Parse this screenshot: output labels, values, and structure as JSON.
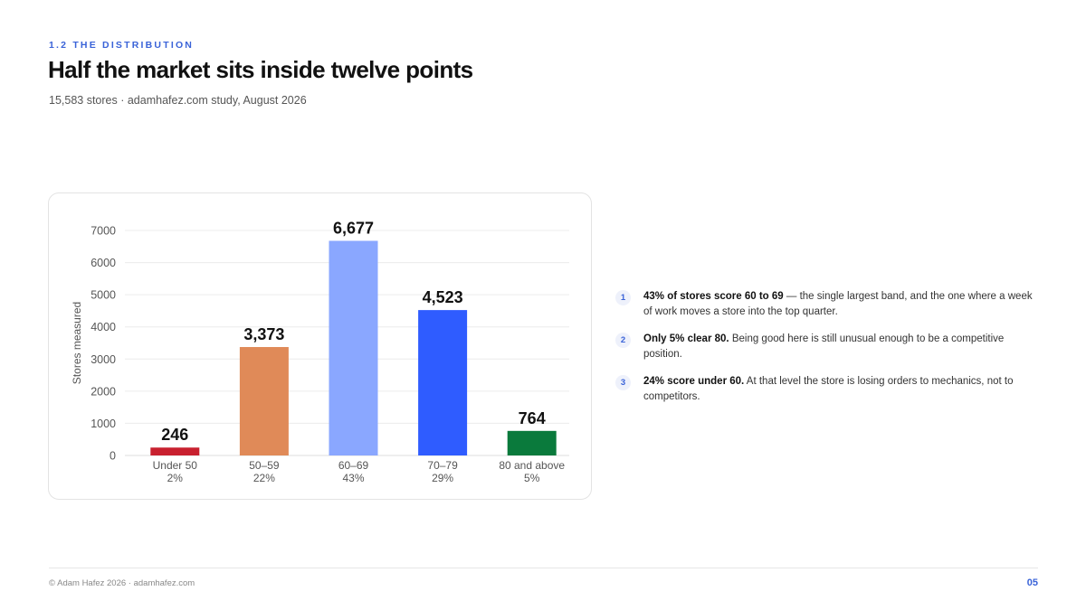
{
  "header": {
    "eyebrow": "1.2 THE DISTRIBUTION",
    "title": "Half the market sits inside twelve points",
    "subtitle": "15,583 stores · adamhafez.com study, August 2026"
  },
  "chart_data": {
    "type": "bar",
    "categories": [
      "Under 50",
      "50–59",
      "60–69",
      "70–79",
      "80 and above"
    ],
    "shares": [
      "2%",
      "22%",
      "43%",
      "29%",
      "5%"
    ],
    "values": [
      246,
      3373,
      6677,
      4523,
      764
    ],
    "value_labels": [
      "246",
      "3,373",
      "6,677",
      "4,523",
      "764"
    ],
    "colors": [
      "#c8202f",
      "#e08a58",
      "#8aa7ff",
      "#2f5cff",
      "#0a7a3c"
    ],
    "ylabel": "Stores measured",
    "xlabel": "",
    "ylim": [
      0,
      7000
    ],
    "yticks": [
      0,
      1000,
      2000,
      3000,
      4000,
      5000,
      6000,
      7000
    ],
    "grid": true
  },
  "insights": [
    {
      "index": "1",
      "bold": "43% of stores score 60 to 69",
      "text": " — the single largest band, and the one where a week of work moves a store into the top quarter."
    },
    {
      "index": "2",
      "bold": "Only 5% clear 80.",
      "text": " Being good here is still unusual enough to be a competitive position."
    },
    {
      "index": "3",
      "bold": "24% score under 60.",
      "text": " At that level the store is losing orders to mechanics, not to competitors."
    }
  ],
  "footer": {
    "copyright": "© Adam Hafez 2026 · adamhafez.com",
    "page": "05"
  }
}
